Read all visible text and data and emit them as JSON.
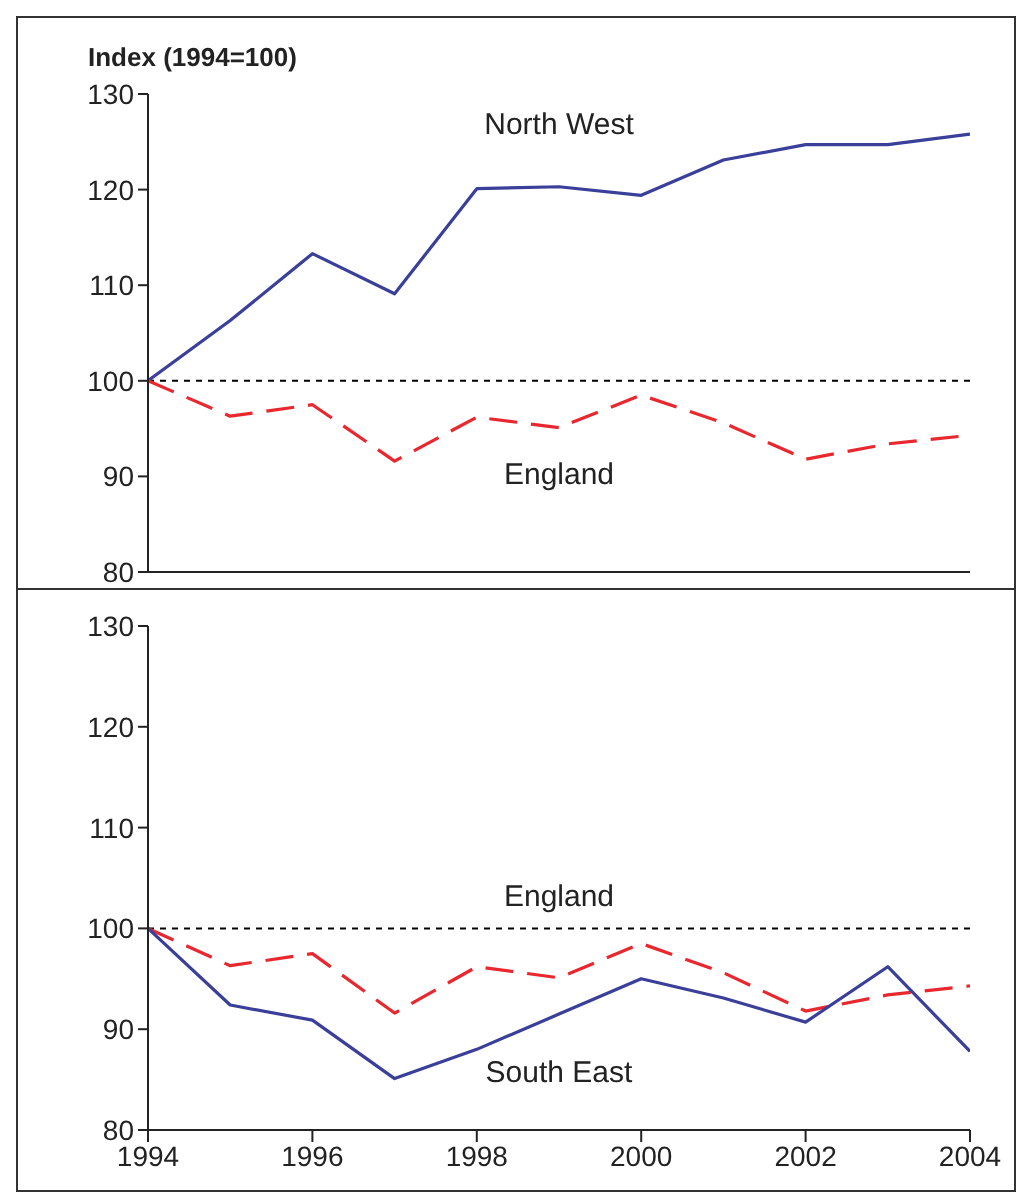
{
  "chart_data": [
    {
      "type": "line",
      "ylabel": "Index (1994=100)",
      "x": [
        1994,
        1995,
        1996,
        1997,
        1998,
        1999,
        2000,
        2001,
        2002,
        2003,
        2004
      ],
      "xlim": [
        1994,
        2004
      ],
      "xticks": [
        1994,
        1996,
        1998,
        2000,
        2002,
        2004
      ],
      "ylim": [
        80,
        130
      ],
      "yticks": [
        80,
        90,
        100,
        110,
        120,
        130
      ],
      "tick_labels": "y",
      "grid": false,
      "legend": false,
      "marker": "none",
      "series": [
        {
          "name": "North West",
          "color": "#3a3f9a",
          "line_style": "solid",
          "values": [
            100,
            106.3,
            113.3,
            109.1,
            120.1,
            120.3,
            119.4,
            123.1,
            124.7,
            124.7,
            125.8
          ]
        },
        {
          "name": "England",
          "color": "#e8282e",
          "line_style": "dashed",
          "values": [
            100,
            96.3,
            97.5,
            91.6,
            96.2,
            95.1,
            98.5,
            95.6,
            91.8,
            93.4,
            94.3
          ]
        }
      ],
      "ref_lines": [
        {
          "axis": "y",
          "value": 100,
          "color": "#000000",
          "line_style": "dotted"
        }
      ]
    },
    {
      "type": "line",
      "x": [
        1994,
        1995,
        1996,
        1997,
        1998,
        1999,
        2000,
        2001,
        2002,
        2003,
        2004
      ],
      "xlim": [
        1994,
        2004
      ],
      "xticks": [
        1994,
        1996,
        1998,
        2000,
        2002,
        2004
      ],
      "ylim": [
        80,
        130
      ],
      "yticks": [
        80,
        90,
        100,
        110,
        120,
        130
      ],
      "grid": false,
      "legend": false,
      "marker": "none",
      "series": [
        {
          "name": "England",
          "color": "#e8282e",
          "line_style": "dashed",
          "values": [
            100,
            96.3,
            97.5,
            91.6,
            96.2,
            95.1,
            98.5,
            95.6,
            91.8,
            93.4,
            94.3
          ]
        },
        {
          "name": "South East",
          "color": "#3a3f9a",
          "line_style": "solid",
          "values": [
            100,
            92.4,
            90.9,
            85.1,
            88.0,
            91.5,
            95.0,
            93.1,
            90.7,
            96.2,
            87.8
          ]
        }
      ],
      "ref_lines": [
        {
          "axis": "y",
          "value": 100,
          "color": "#000000",
          "line_style": "dotted"
        }
      ]
    }
  ]
}
